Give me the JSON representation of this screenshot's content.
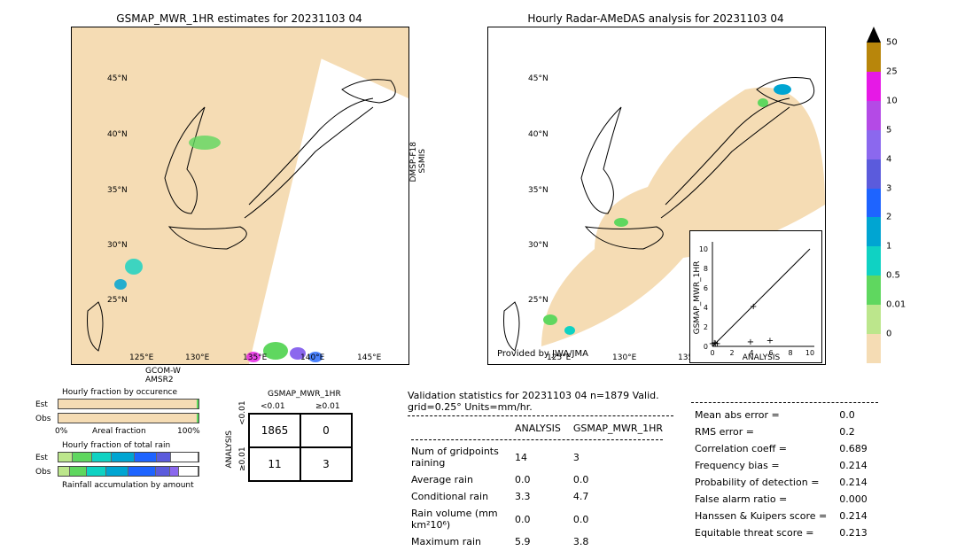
{
  "date_str": "20231103 04",
  "left_map": {
    "title": "GSMAP_MWR_1HR estimates for 20231103 04",
    "xticks": [
      "125°E",
      "130°E",
      "135°E",
      "140°E",
      "145°E"
    ],
    "yticks": [
      "25°N",
      "30°N",
      "35°N",
      "40°N",
      "45°N"
    ],
    "satellite_labels": [
      {
        "text": "GCOM-W",
        "sub": "AMSR2"
      },
      {
        "text": "DMSP-F18",
        "sub": "SSMIS"
      }
    ]
  },
  "right_map": {
    "title": "Hourly Radar-AMeDAS analysis for 20231103 04",
    "xticks": [
      "125°E",
      "130°E",
      "135°E"
    ],
    "yticks": [
      "25°N",
      "30°N",
      "35°N",
      "40°N",
      "45°N"
    ],
    "provider": "Provided by JWA/JMA"
  },
  "colorbar": {
    "ticks": [
      "50",
      "25",
      "10",
      "5",
      "4",
      "3",
      "2",
      "1",
      "0.5",
      "0.01",
      "0"
    ],
    "colors": [
      "#b8860b",
      "#e619e6",
      "#b44ae6",
      "#8b68ee",
      "#5b5bdc",
      "#1e64ff",
      "#00a5d2",
      "#0fd2c3",
      "#5fd75f",
      "#bce68c",
      "#f5dcb4"
    ],
    "top_arrow": "#000000"
  },
  "scatter": {
    "xlabel": "ANALYSIS",
    "ylabel": "GSMAP_MWR_1HR",
    "range": [
      0,
      10
    ],
    "ticks": [
      0,
      2,
      4,
      6,
      8,
      10
    ],
    "points": [
      [
        0,
        0
      ],
      [
        0.2,
        0.1
      ],
      [
        0.3,
        0.05
      ],
      [
        0.5,
        0
      ],
      [
        3.9,
        0.2
      ],
      [
        5.9,
        0.3
      ],
      [
        4.2,
        3.8
      ]
    ]
  },
  "occurrence": {
    "title": "Hourly fraction by occurence",
    "rows": [
      "Est",
      "Obs"
    ],
    "est": 0.99,
    "obs": 0.99,
    "axis_l": "0%",
    "axis_r": "100%",
    "axis_label": "Areal fraction",
    "bg": "#f5dcb4",
    "accent": "#5fd75f"
  },
  "totalrain": {
    "title": "Hourly fraction of total rain",
    "rows": [
      "Est",
      "Obs"
    ],
    "footer": "Rainfall accumulation by amount",
    "est_segs": [
      [
        "#bce68c",
        0.1
      ],
      [
        "#5fd75f",
        0.14
      ],
      [
        "#0fd2c3",
        0.14
      ],
      [
        "#00a5d2",
        0.16
      ],
      [
        "#1e64ff",
        0.16
      ],
      [
        "#5b5bdc",
        0.1
      ],
      [
        "#ffffff",
        0.2
      ]
    ],
    "obs_segs": [
      [
        "#bce68c",
        0.08
      ],
      [
        "#5fd75f",
        0.12
      ],
      [
        "#0fd2c3",
        0.14
      ],
      [
        "#00a5d2",
        0.16
      ],
      [
        "#1e64ff",
        0.2
      ],
      [
        "#5b5bdc",
        0.1
      ],
      [
        "#8b68ee",
        0.06
      ],
      [
        "#ffffff",
        0.14
      ]
    ]
  },
  "contingency": {
    "col_title": "GSMAP_MWR_1HR",
    "row_title": "ANALYSIS",
    "col_heads": [
      "<0.01",
      "≥0.01"
    ],
    "row_heads": [
      "<0.01",
      "≥0.01"
    ],
    "cells": [
      [
        "1865",
        "0"
      ],
      [
        "11",
        "3"
      ]
    ]
  },
  "validation": {
    "title": "Validation statistics for 20231103 04  n=1879 Valid. grid=0.25° Units=mm/hr.",
    "cols": [
      "ANALYSIS",
      "GSMAP_MWR_1HR"
    ],
    "rows": [
      [
        "Num of gridpoints raining",
        "14",
        "3"
      ],
      [
        "Average rain",
        "0.0",
        "0.0"
      ],
      [
        "Conditional rain",
        "3.3",
        "4.7"
      ],
      [
        "Rain volume (mm km²10⁶)",
        "0.0",
        "0.0"
      ],
      [
        "Maximum rain",
        "5.9",
        "3.8"
      ]
    ]
  },
  "scores": [
    [
      "Mean abs error =",
      "0.0"
    ],
    [
      "RMS error =",
      "0.2"
    ],
    [
      "Correlation coeff =",
      "0.689"
    ],
    [
      "Frequency bias =",
      "0.214"
    ],
    [
      "Probability of detection =",
      "0.214"
    ],
    [
      "False alarm ratio =",
      "0.000"
    ],
    [
      "Hanssen & Kuipers score =",
      "0.214"
    ],
    [
      "Equitable threat score =",
      "0.213"
    ]
  ]
}
